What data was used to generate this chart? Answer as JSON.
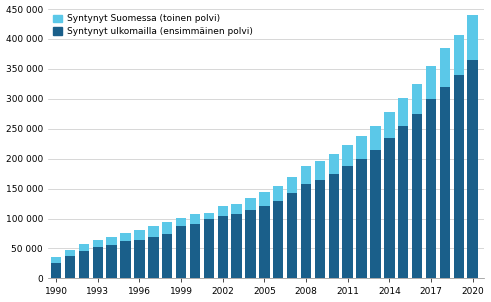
{
  "years": [
    1990,
    1991,
    1992,
    1993,
    1994,
    1995,
    1996,
    1997,
    1998,
    1999,
    2000,
    2001,
    2002,
    2003,
    2004,
    2005,
    2006,
    2007,
    2008,
    2009,
    2010,
    2011,
    2012,
    2013,
    2014,
    2015,
    2016,
    2017,
    2018,
    2019,
    2020
  ],
  "born_abroad": [
    26000,
    37000,
    46000,
    52000,
    56000,
    62000,
    65000,
    70000,
    74000,
    88000,
    91000,
    99000,
    104000,
    108000,
    114000,
    121000,
    130000,
    143000,
    157000,
    164000,
    175000,
    188000,
    200000,
    215000,
    235000,
    255000,
    275000,
    300000,
    320000,
    339000,
    365000
  ],
  "born_finland": [
    9000,
    10000,
    11000,
    12000,
    13000,
    14000,
    16000,
    18000,
    20000,
    13000,
    17000,
    10000,
    17000,
    17000,
    21000,
    24000,
    25000,
    26000,
    30000,
    32000,
    33000,
    35000,
    38000,
    40000,
    43000,
    47000,
    50000,
    55000,
    65000,
    68000,
    75000
  ],
  "color_abroad": "#1a5f8a",
  "color_finland": "#5bc8e8",
  "legend_finland": "Syntynyt Suomessa (toinen polvi)",
  "legend_abroad": "Syntynyt ulkomailla (ensimmäinen polvi)",
  "ylim": [
    0,
    450000
  ],
  "yticks": [
    0,
    50000,
    100000,
    150000,
    200000,
    250000,
    300000,
    350000,
    400000,
    450000
  ],
  "ytick_labels": [
    "0",
    "50 000",
    "100 000",
    "150 000",
    "200 000",
    "250 000",
    "300 000",
    "350 000",
    "400 000",
    "450 000"
  ],
  "xtick_years": [
    1990,
    1993,
    1996,
    1999,
    2002,
    2005,
    2008,
    2011,
    2014,
    2017,
    2020
  ],
  "bar_width": 0.75,
  "background_color": "#ffffff",
  "grid_color": "#c8c8c8"
}
